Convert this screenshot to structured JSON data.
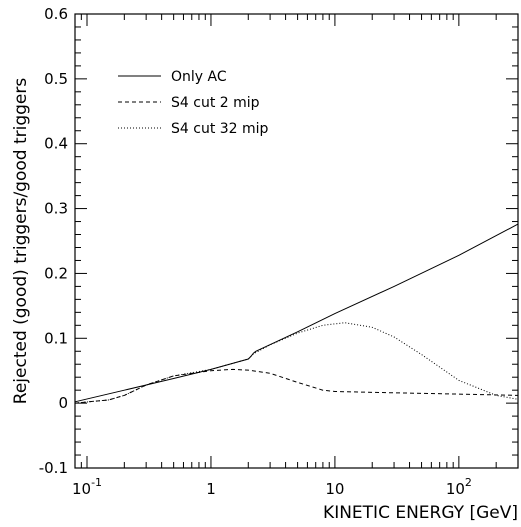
{
  "chart_data": {
    "type": "line",
    "xlabel": "KINETIC ENERGY  [GeV]",
    "ylabel": "Rejected (good) triggers/good triggers",
    "x_scale": "log",
    "xlim": [
      0.08,
      300
    ],
    "ylim": [
      -0.1,
      0.6
    ],
    "yticks": [
      {
        "value": -0.1,
        "label": "-0.1"
      },
      {
        "value": 0,
        "label": "0"
      },
      {
        "value": 0.1,
        "label": "0.1"
      },
      {
        "value": 0.2,
        "label": "0.2"
      },
      {
        "value": 0.3,
        "label": "0.3"
      },
      {
        "value": 0.4,
        "label": "0.4"
      },
      {
        "value": 0.5,
        "label": "0.5"
      },
      {
        "value": 0.6,
        "label": "0.6"
      }
    ],
    "xticks": [
      {
        "value": 0.1,
        "base": "10",
        "exp": "-1"
      },
      {
        "value": 1,
        "base": "1",
        "exp": ""
      },
      {
        "value": 10,
        "base": "10",
        "exp": ""
      },
      {
        "value": 100,
        "base": "10",
        "exp": "2"
      }
    ],
    "legend_position": "top-left",
    "grid": false,
    "series": [
      {
        "name": "Only AC",
        "style": "solid",
        "x": [
          0.08,
          0.2,
          0.5,
          1,
          2,
          2.1,
          2.2,
          2.3,
          5,
          10,
          30,
          100,
          300
        ],
        "y": [
          0.002,
          0.02,
          0.038,
          0.052,
          0.068,
          0.072,
          0.077,
          0.08,
          0.11,
          0.138,
          0.18,
          0.228,
          0.276
        ]
      },
      {
        "name": "S4 cut 2 mip",
        "style": "dashed",
        "x": [
          0.08,
          0.15,
          0.2,
          0.3,
          0.5,
          1,
          1.5,
          2,
          3,
          5,
          8,
          10,
          30,
          100,
          300
        ],
        "y": [
          0.0,
          0.005,
          0.012,
          0.028,
          0.042,
          0.05,
          0.052,
          0.051,
          0.046,
          0.032,
          0.02,
          0.018,
          0.016,
          0.014,
          0.012
        ]
      },
      {
        "name": "S4 cut 32 mip",
        "style": "dotted",
        "x": [
          0.08,
          0.15,
          0.2,
          0.3,
          0.5,
          1,
          2,
          2.2,
          3,
          5,
          8,
          12,
          20,
          30,
          50,
          100,
          200,
          300
        ],
        "y": [
          0.0,
          0.005,
          0.012,
          0.028,
          0.042,
          0.052,
          0.068,
          0.076,
          0.09,
          0.108,
          0.12,
          0.124,
          0.117,
          0.102,
          0.075,
          0.035,
          0.012,
          0.006
        ]
      }
    ]
  }
}
